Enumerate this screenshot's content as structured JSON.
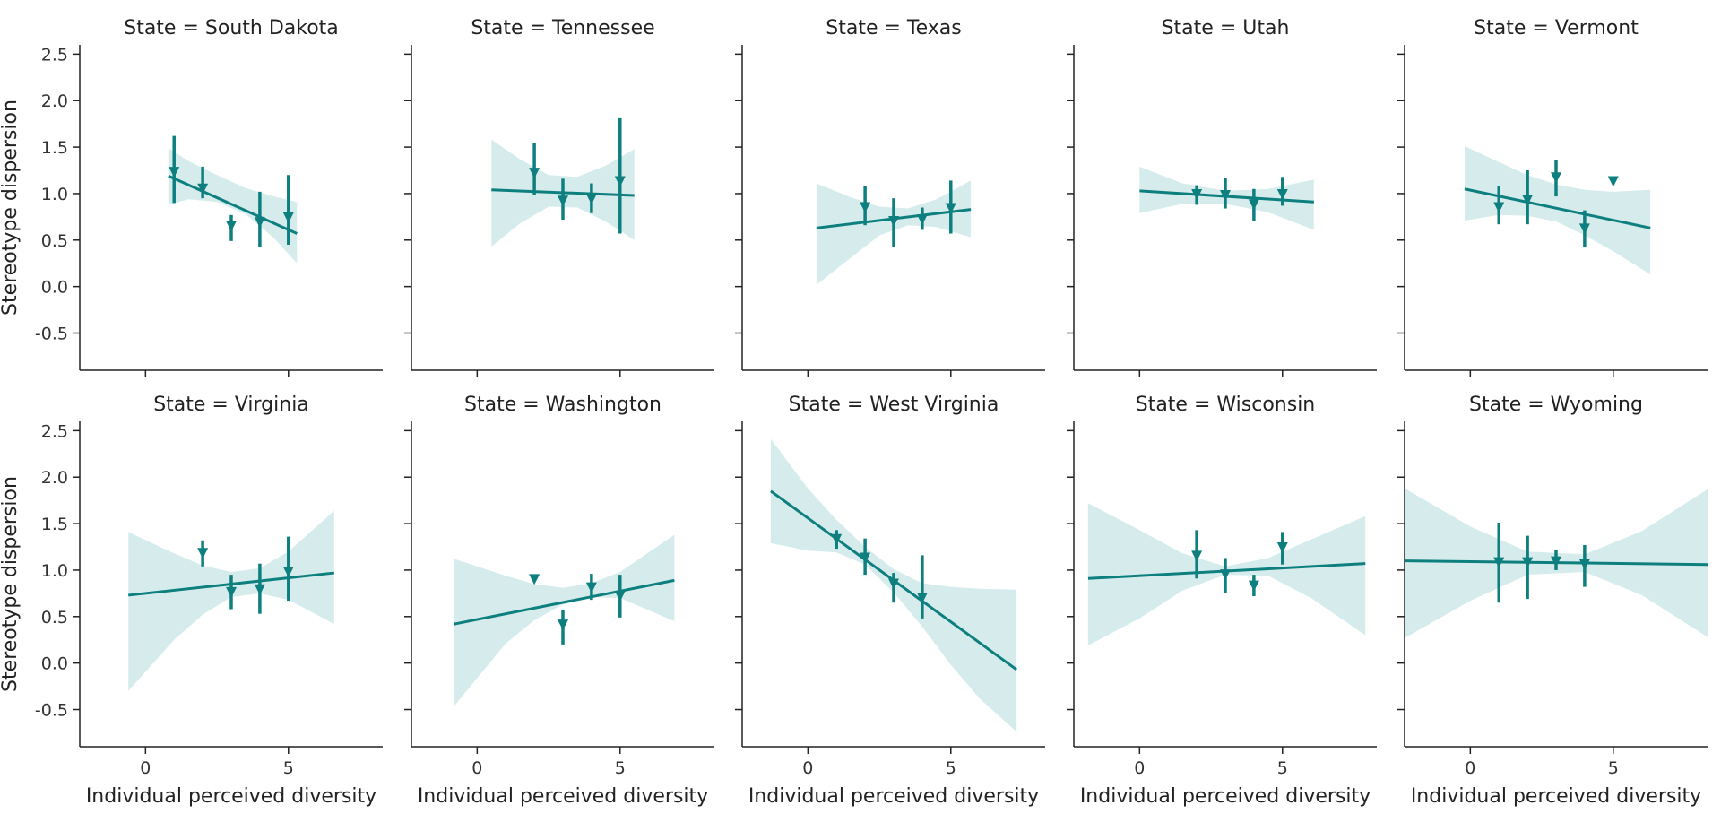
{
  "chart_data": {
    "type": "facet-regression",
    "xlabel": "Individual perceived diversity",
    "ylabel": "Stereotype dispersion",
    "title_prefix": "State = ",
    "ylim": [
      -0.9,
      2.6
    ],
    "yticks": [
      -0.5,
      0.0,
      0.5,
      1.0,
      1.5,
      2.0,
      2.5
    ],
    "xlim": [
      -2.3,
      8.3
    ],
    "xticks": [
      0,
      5
    ],
    "color": "#0e7f7f",
    "band_color": "#d6ecec",
    "marker": "triangle-down",
    "legend": "none",
    "grid": false,
    "panels": [
      {
        "state": "South Dakota",
        "line": {
          "x": [
            0.8,
            5.3
          ],
          "y": [
            1.19,
            0.57
          ]
        },
        "band": {
          "x": [
            0.8,
            1.5,
            2.5,
            3.5,
            4.5,
            5.3
          ],
          "upper": [
            1.49,
            1.35,
            1.2,
            1.06,
            0.97,
            0.91
          ],
          "lower": [
            0.88,
            0.94,
            0.91,
            0.78,
            0.52,
            0.25
          ]
        },
        "points": [
          {
            "x": 1,
            "y": 1.23,
            "lo": 0.9,
            "hi": 1.62
          },
          {
            "x": 2,
            "y": 1.05,
            "lo": 0.95,
            "hi": 1.29
          },
          {
            "x": 3,
            "y": 0.65,
            "lo": 0.49,
            "hi": 0.77
          },
          {
            "x": 4,
            "y": 0.69,
            "lo": 0.43,
            "hi": 1.02
          },
          {
            "x": 5,
            "y": 0.74,
            "lo": 0.45,
            "hi": 1.2
          }
        ]
      },
      {
        "state": "Tennessee",
        "line": {
          "x": [
            0.5,
            5.5
          ],
          "y": [
            1.04,
            0.98
          ]
        },
        "band": {
          "x": [
            0.5,
            1.5,
            2.5,
            3.5,
            4.5,
            5.5
          ],
          "upper": [
            1.58,
            1.37,
            1.2,
            1.18,
            1.3,
            1.48
          ],
          "lower": [
            0.43,
            0.68,
            0.86,
            0.85,
            0.7,
            0.5
          ]
        },
        "points": [
          {
            "x": 2,
            "y": 1.22,
            "lo": 0.99,
            "hi": 1.54
          },
          {
            "x": 3,
            "y": 0.92,
            "lo": 0.72,
            "hi": 1.16
          },
          {
            "x": 4,
            "y": 0.94,
            "lo": 0.79,
            "hi": 1.11
          },
          {
            "x": 5,
            "y": 1.13,
            "lo": 0.57,
            "hi": 1.81
          }
        ]
      },
      {
        "state": "Texas",
        "line": {
          "x": [
            0.3,
            5.7
          ],
          "y": [
            0.63,
            0.83
          ]
        },
        "band": {
          "x": [
            0.3,
            1.5,
            2.5,
            3.5,
            4.5,
            5.7
          ],
          "upper": [
            1.11,
            0.96,
            0.86,
            0.84,
            0.94,
            1.14
          ],
          "lower": [
            0.02,
            0.31,
            0.55,
            0.66,
            0.64,
            0.53
          ]
        },
        "points": [
          {
            "x": 2,
            "y": 0.85,
            "lo": 0.66,
            "hi": 1.08
          },
          {
            "x": 3,
            "y": 0.7,
            "lo": 0.43,
            "hi": 0.95
          },
          {
            "x": 4,
            "y": 0.72,
            "lo": 0.61,
            "hi": 0.85
          },
          {
            "x": 5,
            "y": 0.84,
            "lo": 0.57,
            "hi": 1.14
          }
        ]
      },
      {
        "state": "Utah",
        "line": {
          "x": [
            0,
            6.1
          ],
          "y": [
            1.03,
            0.91
          ]
        },
        "band": {
          "x": [
            0,
            1.5,
            3,
            4.5,
            6.1
          ],
          "upper": [
            1.29,
            1.11,
            1.03,
            1.05,
            1.15
          ],
          "lower": [
            0.79,
            0.89,
            0.89,
            0.8,
            0.61
          ]
        },
        "points": [
          {
            "x": 2,
            "y": 0.99,
            "lo": 0.88,
            "hi": 1.09
          },
          {
            "x": 3,
            "y": 0.98,
            "lo": 0.84,
            "hi": 1.17
          },
          {
            "x": 4,
            "y": 0.88,
            "lo": 0.71,
            "hi": 1.05
          },
          {
            "x": 5,
            "y": 0.99,
            "lo": 0.87,
            "hi": 1.18
          }
        ]
      },
      {
        "state": "Vermont",
        "line": {
          "x": [
            -0.2,
            6.3
          ],
          "y": [
            1.05,
            0.63
          ]
        },
        "band": {
          "x": [
            -0.2,
            1,
            2,
            3,
            4,
            5,
            6.3
          ],
          "upper": [
            1.51,
            1.34,
            1.2,
            1.1,
            1.04,
            1.02,
            1.04
          ],
          "lower": [
            0.71,
            0.77,
            0.76,
            0.7,
            0.55,
            0.38,
            0.13
          ]
        },
        "points": [
          {
            "x": 1,
            "y": 0.85,
            "lo": 0.67,
            "hi": 1.08
          },
          {
            "x": 2,
            "y": 0.93,
            "lo": 0.67,
            "hi": 1.25
          },
          {
            "x": 3,
            "y": 1.17,
            "lo": 0.97,
            "hi": 1.36
          },
          {
            "x": 4,
            "y": 0.62,
            "lo": 0.42,
            "hi": 0.82
          },
          {
            "x": 5,
            "y": 1.13,
            "lo": 1.13,
            "hi": 1.13
          }
        ]
      },
      {
        "state": "Virginia",
        "line": {
          "x": [
            -0.6,
            6.6
          ],
          "y": [
            0.73,
            0.97
          ]
        },
        "band": {
          "x": [
            -0.6,
            1,
            2,
            3,
            4,
            5,
            6.6
          ],
          "upper": [
            1.41,
            1.18,
            1.05,
            0.98,
            1.02,
            1.2,
            1.64
          ],
          "lower": [
            -0.3,
            0.25,
            0.52,
            0.71,
            0.75,
            0.68,
            0.42
          ]
        },
        "points": [
          {
            "x": 2,
            "y": 1.18,
            "lo": 1.04,
            "hi": 1.32
          },
          {
            "x": 3,
            "y": 0.76,
            "lo": 0.58,
            "hi": 0.95
          },
          {
            "x": 4,
            "y": 0.79,
            "lo": 0.53,
            "hi": 1.07
          },
          {
            "x": 5,
            "y": 0.98,
            "lo": 0.67,
            "hi": 1.36
          }
        ]
      },
      {
        "state": "Washington",
        "line": {
          "x": [
            -0.8,
            6.9
          ],
          "y": [
            0.42,
            0.89
          ]
        },
        "band": {
          "x": [
            -0.8,
            1,
            2,
            3,
            4,
            5,
            6.9
          ],
          "upper": [
            1.12,
            0.94,
            0.85,
            0.81,
            0.86,
            0.98,
            1.38
          ],
          "lower": [
            -0.46,
            0.21,
            0.46,
            0.63,
            0.71,
            0.7,
            0.45
          ]
        },
        "points": [
          {
            "x": 2,
            "y": 0.9,
            "lo": 0.9,
            "hi": 0.9
          },
          {
            "x": 3,
            "y": 0.41,
            "lo": 0.2,
            "hi": 0.57
          },
          {
            "x": 4,
            "y": 0.81,
            "lo": 0.68,
            "hi": 0.96
          },
          {
            "x": 5,
            "y": 0.72,
            "lo": 0.49,
            "hi": 0.95
          }
        ]
      },
      {
        "state": "West Virginia",
        "line": {
          "x": [
            -1.3,
            7.3
          ],
          "y": [
            1.85,
            -0.07
          ]
        },
        "band": {
          "x": [
            -1.3,
            0,
            1,
            2,
            3,
            4,
            5,
            6,
            7.3
          ],
          "upper": [
            2.41,
            1.88,
            1.54,
            1.25,
            1.01,
            0.86,
            0.82,
            0.8,
            0.79
          ],
          "lower": [
            1.29,
            1.21,
            1.19,
            1.06,
            0.76,
            0.39,
            -0.02,
            -0.38,
            -0.74
          ]
        },
        "points": [
          {
            "x": 1,
            "y": 1.33,
            "lo": 1.23,
            "hi": 1.43
          },
          {
            "x": 2,
            "y": 1.13,
            "lo": 0.95,
            "hi": 1.34
          },
          {
            "x": 3,
            "y": 0.85,
            "lo": 0.65,
            "hi": 0.97
          },
          {
            "x": 4,
            "y": 0.7,
            "lo": 0.48,
            "hi": 1.16
          }
        ]
      },
      {
        "state": "Wisconsin",
        "line": {
          "x": [
            -1.8,
            7.9
          ],
          "y": [
            0.91,
            1.07
          ]
        },
        "band": {
          "x": [
            -1.8,
            0,
            1.5,
            3,
            4.5,
            6,
            7.9
          ],
          "upper": [
            1.72,
            1.43,
            1.18,
            1.04,
            1.13,
            1.33,
            1.58
          ],
          "lower": [
            0.19,
            0.48,
            0.78,
            0.95,
            0.94,
            0.7,
            0.3
          ]
        },
        "points": [
          {
            "x": 2,
            "y": 1.15,
            "lo": 0.91,
            "hi": 1.43
          },
          {
            "x": 3,
            "y": 0.95,
            "lo": 0.75,
            "hi": 1.13
          },
          {
            "x": 4,
            "y": 0.83,
            "lo": 0.72,
            "hi": 0.95
          },
          {
            "x": 5,
            "y": 1.24,
            "lo": 1.06,
            "hi": 1.41
          }
        ]
      },
      {
        "state": "Wyoming",
        "line": {
          "x": [
            -2.3,
            8.3
          ],
          "y": [
            1.1,
            1.06
          ]
        },
        "band": {
          "x": [
            -2.3,
            0,
            2,
            4,
            6,
            8.3
          ],
          "upper": [
            1.88,
            1.47,
            1.2,
            1.17,
            1.42,
            1.87
          ],
          "lower": [
            0.27,
            0.67,
            0.95,
            0.98,
            0.73,
            0.28
          ]
        },
        "points": [
          {
            "x": 1,
            "y": 1.08,
            "lo": 0.65,
            "hi": 1.51
          },
          {
            "x": 2,
            "y": 1.08,
            "lo": 0.69,
            "hi": 1.37
          },
          {
            "x": 3,
            "y": 1.09,
            "lo": 1.0,
            "hi": 1.22
          },
          {
            "x": 4,
            "y": 1.06,
            "lo": 0.82,
            "hi": 1.27
          }
        ]
      }
    ]
  }
}
